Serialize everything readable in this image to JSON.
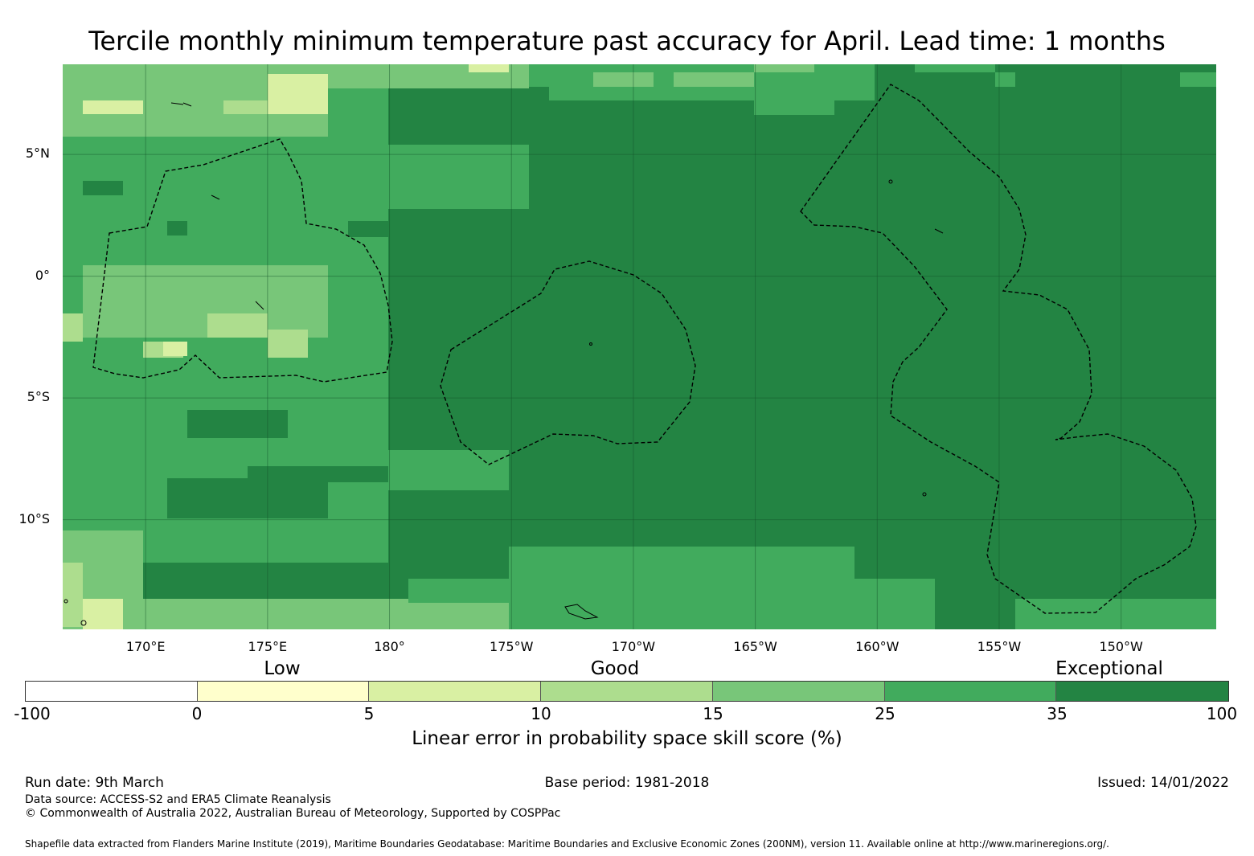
{
  "title": "Tercile monthly minimum temperature past accuracy for April. Lead time: 1 months",
  "map": {
    "lat_labels": [
      {
        "label": "5°N",
        "lat": 5
      },
      {
        "label": "0°",
        "lat": 0
      },
      {
        "label": "5°S",
        "lat": -5
      },
      {
        "label": "10°S",
        "lat": -10
      }
    ],
    "lon_labels": [
      {
        "label": "170°E",
        "lon": 170
      },
      {
        "label": "175°E",
        "lon": 175
      },
      {
        "label": "180°",
        "lon": 180
      },
      {
        "label": "175°W",
        "lon": 185
      },
      {
        "label": "170°W",
        "lon": 190
      },
      {
        "label": "165°W",
        "lon": 195
      },
      {
        "label": "160°W",
        "lon": 200
      },
      {
        "label": "155°W",
        "lon": 205
      },
      {
        "label": "150°W",
        "lon": 210
      }
    ],
    "extent": {
      "lon_min": 166.6,
      "lon_max": 213.9,
      "lat_min": -14.5,
      "lat_max": 8.7
    },
    "gridlines": true,
    "colors": {
      "c1": "#ffffcc",
      "c2": "#d9f0a3",
      "c3": "#addd8e",
      "c4": "#78c679",
      "c5": "#41ab5d",
      "c6": "#238443"
    }
  },
  "legend": {
    "qualitative": [
      {
        "label": "Low",
        "value": 2
      },
      {
        "label": "Good",
        "value": 14
      },
      {
        "label": "Exceptional",
        "value": 95
      }
    ],
    "ticks": [
      "-100",
      "0",
      "5",
      "10",
      "15",
      "25",
      "35",
      "100"
    ],
    "colors": [
      "#ffffff",
      "#ffffcc",
      "#d9f0a3",
      "#addd8e",
      "#78c679",
      "#41ab5d",
      "#238443"
    ],
    "label": "Linear error in probability space skill score (%)"
  },
  "footer": {
    "run_date": "Run date: 9th March",
    "base_period": "Base period: 1981-2018",
    "issued": "Issued: 14/01/2022",
    "data_source": "Data source: ACCESS-S2 and ERA5 Climate Reanalysis",
    "copyright": "© Commonwealth of Australia 2022, Australian Bureau of Meteorology, Supported by COSPPac",
    "shapefile": "Shapefile data extracted from Flanders Marine Institute (2019), Maritime Boundaries Geodatabase: Maritime Boundaries and Exclusive Economic Zones (200NM), version 11. Available online at http://www.marineregions.org/."
  }
}
